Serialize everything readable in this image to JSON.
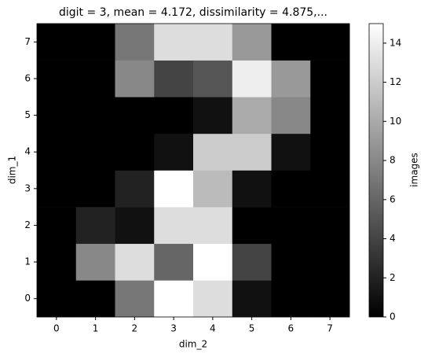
{
  "chart_data": {
    "type": "heatmap",
    "title": "digit = 3, mean = 4.172, dissimilarity = 4.875,...",
    "xlabel": "dim_2",
    "ylabel": "dim_1",
    "xlim": [
      -0.5,
      7.5
    ],
    "xticks": [
      0,
      1,
      2,
      3,
      4,
      5,
      6,
      7
    ],
    "ylim": [
      -0.5,
      7.5
    ],
    "yticks": [
      0,
      1,
      2,
      3,
      4,
      5,
      6,
      7
    ],
    "values": [
      [
        0,
        0,
        7,
        15,
        13,
        1,
        0,
        0
      ],
      [
        0,
        8,
        13,
        6,
        15,
        4,
        0,
        0
      ],
      [
        0,
        2,
        1,
        13,
        13,
        0,
        0,
        0
      ],
      [
        0,
        0,
        2,
        15,
        11,
        1,
        0,
        0
      ],
      [
        0,
        0,
        0,
        1,
        12,
        12,
        1,
        0
      ],
      [
        0,
        0,
        0,
        0,
        1,
        10,
        8,
        0
      ],
      [
        0,
        0,
        8,
        4,
        5,
        14,
        9,
        0
      ],
      [
        0,
        0,
        7,
        13,
        13,
        9,
        0,
        0
      ]
    ],
    "colormap": "gray",
    "colorbar": {
      "label": "images",
      "lim": [
        0,
        15
      ],
      "ticks": [
        0,
        2,
        4,
        6,
        8,
        10,
        12,
        14
      ]
    }
  }
}
